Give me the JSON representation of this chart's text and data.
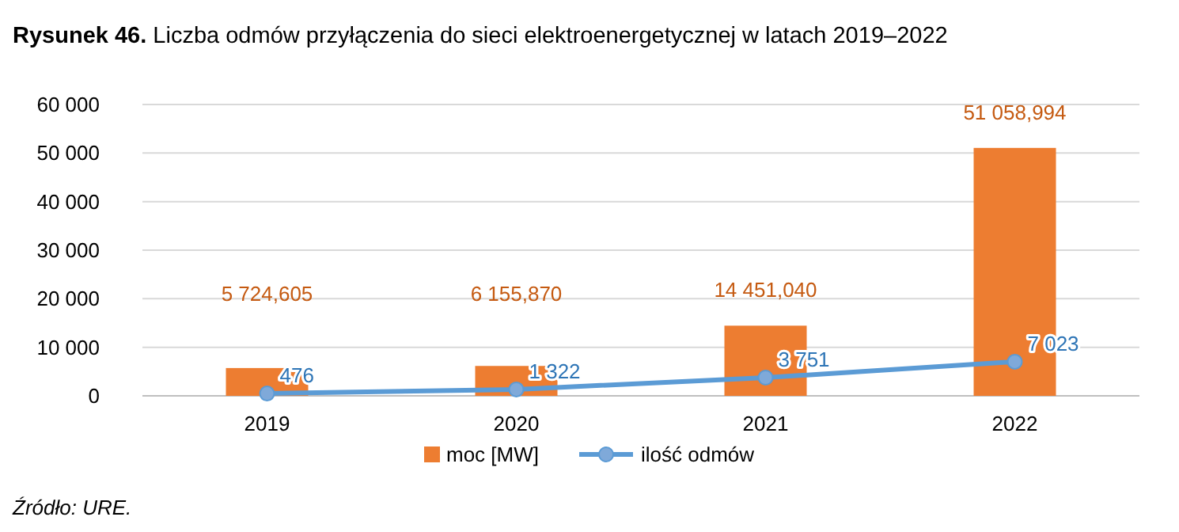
{
  "chart_data": {
    "type": "bar",
    "title": "Rysunek 46. Liczba odmów przyłączenia do sieci elektroenergetycznej w latach 2019–2022",
    "categories": [
      "2019",
      "2020",
      "2021",
      "2022"
    ],
    "series": [
      {
        "name": "moc [MW]",
        "color": "#ed7d31",
        "values": [
          5724.605,
          6155.87,
          14451.04,
          51058.994
        ],
        "value_labels": [
          "5 724,605",
          "6 155,870",
          "14 451,040",
          "51 058,994"
        ]
      },
      {
        "name": "ilość odmów",
        "type": "line",
        "color": "#5b9bd5",
        "values": [
          476,
          1322,
          3751,
          7023
        ],
        "value_labels": [
          "476",
          "1 322",
          "3 751",
          "7 023"
        ]
      }
    ],
    "ylim": [
      0,
      60000
    ],
    "yticks": [
      {
        "value": 0,
        "label": "0"
      },
      {
        "value": 10000,
        "label": "10 000"
      },
      {
        "value": 20000,
        "label": "20 000"
      },
      {
        "value": 30000,
        "label": "30 000"
      },
      {
        "value": 40000,
        "label": "40 000"
      },
      {
        "value": 50000,
        "label": "50 000"
      },
      {
        "value": 60000,
        "label": "60 000"
      }
    ],
    "grid": "y",
    "legend": "bottom",
    "marker": "circle",
    "line_style": "solid",
    "annotations": [
      "Źródło: URE."
    ]
  }
}
